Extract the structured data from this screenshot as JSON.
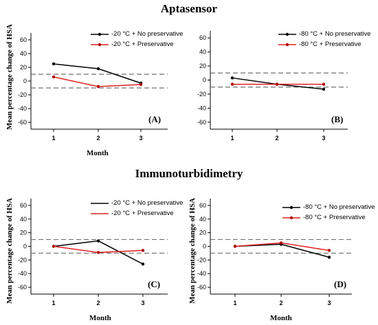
{
  "titles": {
    "top": "Aptasensor",
    "bottom": "Immunoturbidimetry"
  },
  "colors": {
    "no_preservative": "#000000",
    "preservative": "#e02020",
    "threshold": "#707070"
  },
  "chart_data": [
    {
      "type": "line",
      "panel": "(A)",
      "section": "Aptasensor",
      "x": [
        1,
        2,
        3
      ],
      "xlabel": "Month",
      "ylabel": "Mean percentage change of HSA",
      "ylim": [
        -70,
        70
      ],
      "yticks": [
        -60,
        -40,
        -20,
        0,
        20,
        40,
        60
      ],
      "xticks": [
        1,
        2,
        3
      ],
      "thresholds": [
        10,
        -10
      ],
      "legend_position": "top-right",
      "series": [
        {
          "name": "-20 °C + No preservative",
          "values": [
            25,
            18,
            -3
          ]
        },
        {
          "name": "-20 °C + Preservative",
          "values": [
            6,
            -8,
            -5
          ]
        }
      ]
    },
    {
      "type": "line",
      "panel": "(B)",
      "section": "Aptasensor",
      "x": [
        1,
        2,
        3
      ],
      "xlabel": "",
      "ylabel": "",
      "ylim": [
        -70,
        70
      ],
      "yticks": [
        -60,
        -40,
        -20,
        0,
        20,
        40,
        60
      ],
      "xticks": [
        1,
        2,
        3
      ],
      "thresholds": [
        10,
        -10
      ],
      "legend_position": "top-right",
      "series": [
        {
          "name": "-80 °C + No preservative",
          "values": [
            3,
            -6,
            -13
          ]
        },
        {
          "name": "-80 °C + Preservative",
          "values": [
            -6,
            -6,
            -6
          ]
        }
      ]
    },
    {
      "type": "line",
      "panel": "(C)",
      "section": "Immunoturbidimetry",
      "x": [
        1,
        2,
        3
      ],
      "xlabel": "Month",
      "ylabel": "Mean percentage change of HSA",
      "ylim": [
        -70,
        70
      ],
      "yticks": [
        -60,
        -40,
        -20,
        0,
        20,
        40,
        60
      ],
      "xticks": [
        1,
        2,
        3
      ],
      "thresholds": [
        10,
        -10
      ],
      "legend_position": "top-right",
      "series": [
        {
          "name": "-20 °C + No preservative",
          "values": [
            0,
            8,
            -26
          ]
        },
        {
          "name": "-20 °C + Preservative",
          "values": [
            0,
            -9,
            -6
          ]
        }
      ]
    },
    {
      "type": "line",
      "panel": "(D)",
      "section": "Immunoturbidimetry",
      "x": [
        1,
        2,
        3
      ],
      "xlabel": "Month",
      "ylabel": "Mean percentage change of HSA",
      "ylim": [
        -70,
        70
      ],
      "yticks": [
        -60,
        -40,
        -20,
        0,
        20,
        40,
        60
      ],
      "xticks": [
        1,
        2,
        3
      ],
      "thresholds": [
        10,
        -10
      ],
      "legend_position": "top-right",
      "series": [
        {
          "name": "-80 °C + No preservative",
          "values": [
            0,
            3,
            -16
          ]
        },
        {
          "name": "-80 °C  + Preservative",
          "values": [
            0,
            5,
            -6
          ]
        }
      ]
    }
  ]
}
